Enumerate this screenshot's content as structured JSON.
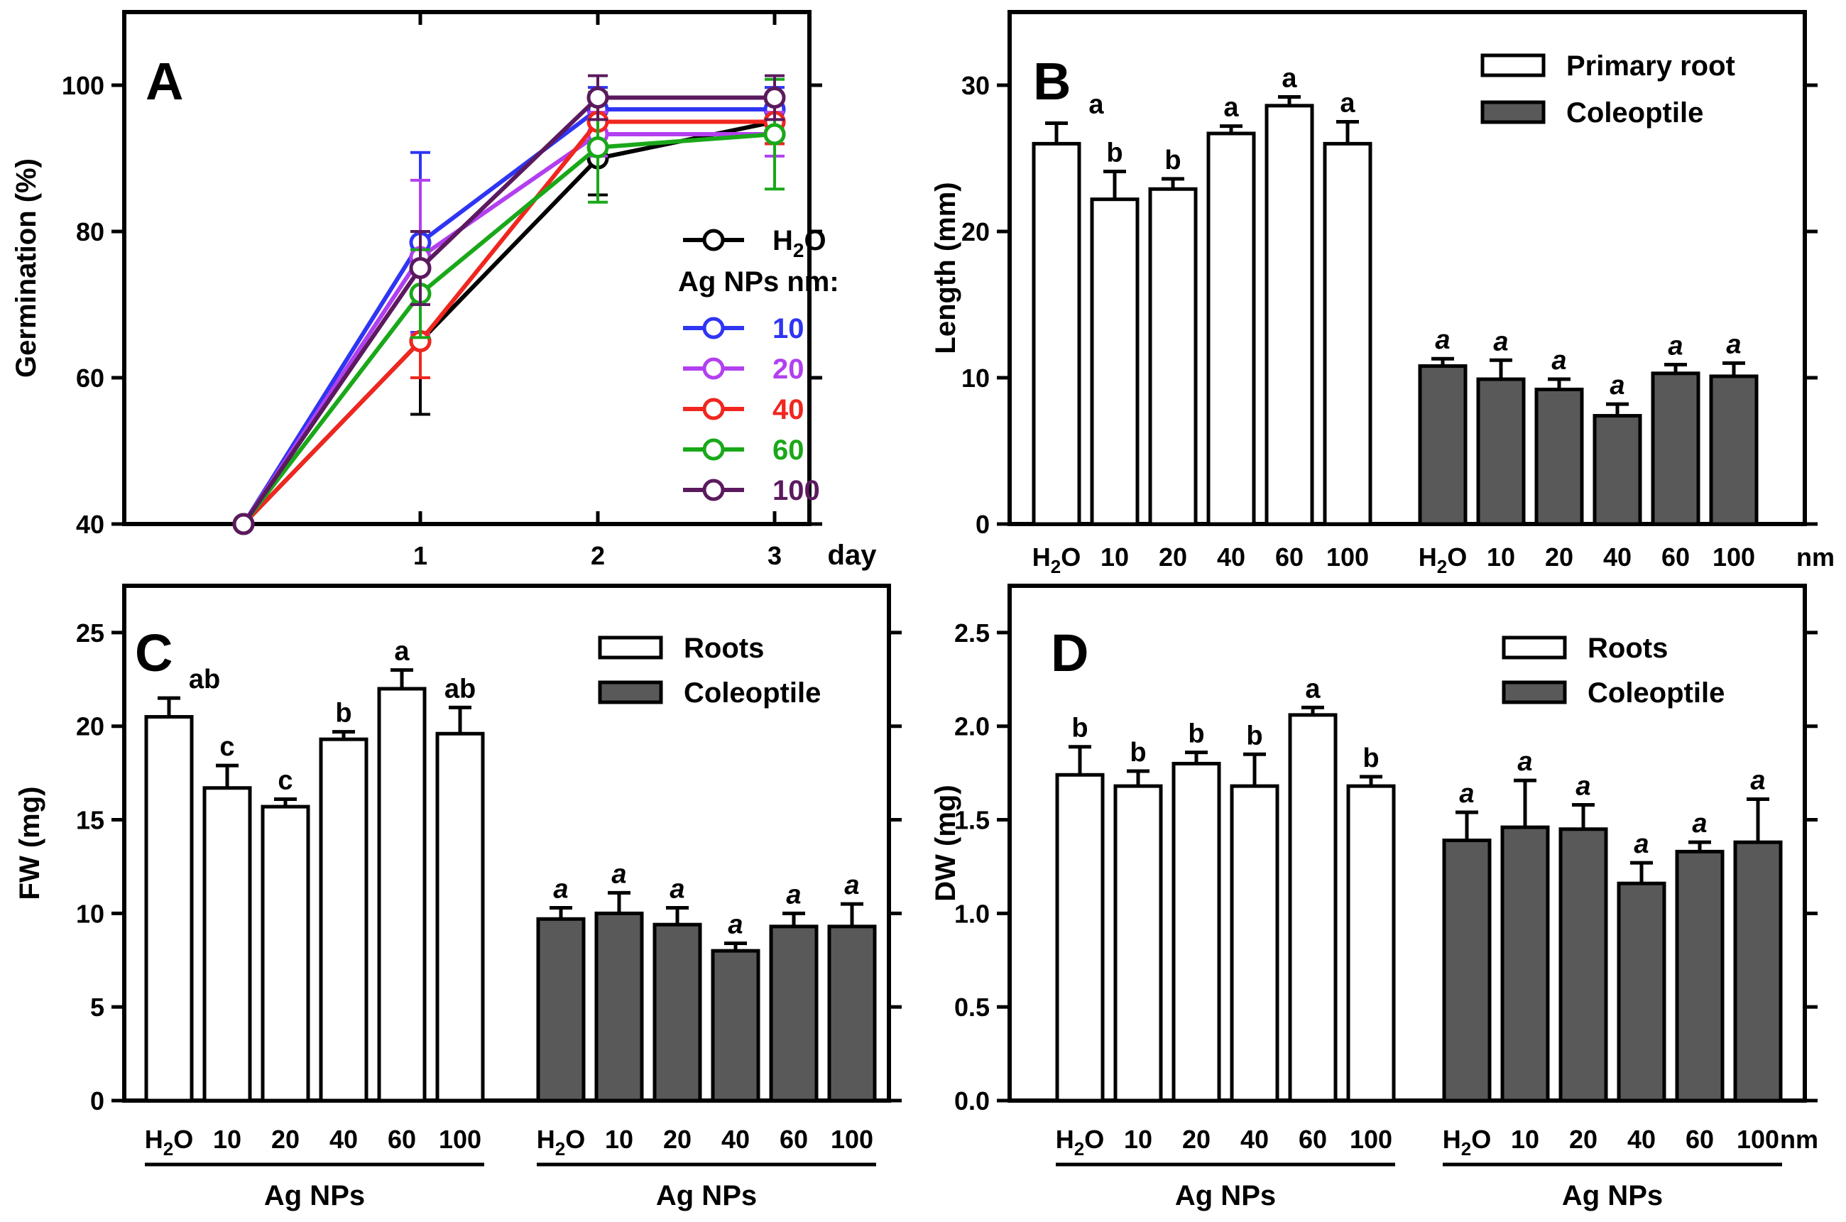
{
  "colors": {
    "white_bar": "#ffffff",
    "dark_bar": "#595959",
    "h2o": "#000000",
    "s10": "#2f35f3",
    "s20": "#b23ff0",
    "s40": "#f0261f",
    "s60": "#19a819",
    "s100": "#5b1a5e"
  },
  "chart_data": [
    {
      "type": "line",
      "panel": "A",
      "ylabel": "Germination (%)",
      "xlabel": "day",
      "x": [
        0,
        1,
        2,
        3
      ],
      "x_ticks": [
        "1",
        "2",
        "3"
      ],
      "y_ticks": [
        "40",
        "60",
        "80",
        "100"
      ],
      "ylim": [
        40,
        110
      ],
      "legend_title": "Ag NPs nm:",
      "series": [
        {
          "name": "H₂O",
          "legend_main": "H",
          "legend_sub": "2",
          "legend_tail": "O",
          "color_key": "h2o",
          "values": [
            40,
            65,
            90,
            95
          ],
          "errors": [
            0,
            10,
            5,
            3
          ]
        },
        {
          "name": "10",
          "color_key": "s10",
          "values": [
            40,
            78.5,
            96.7,
            96.7
          ],
          "errors": [
            0,
            12.3,
            3,
            3
          ]
        },
        {
          "name": "20",
          "color_key": "s20",
          "values": [
            40,
            76.5,
            93.3,
            93.3
          ],
          "errors": [
            0,
            10.5,
            3,
            3
          ]
        },
        {
          "name": "40",
          "color_key": "s40",
          "values": [
            40,
            65,
            95,
            95
          ],
          "errors": [
            0,
            5,
            3,
            3
          ]
        },
        {
          "name": "60",
          "color_key": "s60",
          "values": [
            40,
            71.5,
            91.5,
            93.3
          ],
          "errors": [
            0,
            6,
            7.5,
            7.5
          ]
        },
        {
          "name": "100",
          "color_key": "s100",
          "values": [
            40,
            75,
            98.3,
            98.3
          ],
          "errors": [
            0,
            5,
            3,
            3
          ]
        }
      ]
    },
    {
      "type": "bar",
      "panel": "B",
      "ylabel": "Length (mm)",
      "ylim": [
        0,
        35
      ],
      "y_ticks": [
        "0",
        "10",
        "20",
        "30"
      ],
      "categories": [
        "H₂O",
        "10",
        "20",
        "40",
        "60",
        "100"
      ],
      "unit_label": "nm",
      "group_labels": [
        "",
        ""
      ],
      "series": [
        {
          "name": "Primary root",
          "style": "white",
          "values": [
            26,
            22.2,
            22.9,
            26.7,
            28.6,
            26.0
          ],
          "errors": [
            1.4,
            1.9,
            0.7,
            0.5,
            0.6,
            1.5
          ],
          "letters": [
            "a",
            "b",
            "b",
            "a",
            "a",
            "a"
          ]
        },
        {
          "name": "Coleoptile",
          "style": "dark",
          "values": [
            10.8,
            9.9,
            9.2,
            7.4,
            10.3,
            10.1
          ],
          "errors": [
            0.5,
            1.3,
            0.7,
            0.8,
            0.6,
            0.9
          ],
          "letters": [
            "a",
            "a",
            "a",
            "a",
            "a",
            "a"
          ]
        }
      ]
    },
    {
      "type": "bar",
      "panel": "C",
      "ylabel": "FW (mg)",
      "ylim": [
        0,
        27.5
      ],
      "y_ticks": [
        "0",
        "5",
        "10",
        "15",
        "20",
        "25"
      ],
      "categories": [
        "H₂O",
        "10",
        "20",
        "40",
        "60",
        "100"
      ],
      "unit_label": "",
      "group_labels": [
        "Ag NPs",
        "Ag NPs"
      ],
      "series": [
        {
          "name": "Roots",
          "style": "white",
          "values": [
            20.5,
            16.7,
            15.7,
            19.3,
            22.0,
            19.6
          ],
          "errors": [
            1.0,
            1.2,
            0.4,
            0.4,
            1.0,
            1.4
          ],
          "letters": [
            "ab",
            "c",
            "c",
            "b",
            "a",
            "ab"
          ]
        },
        {
          "name": "Coleoptile",
          "style": "dark",
          "values": [
            9.7,
            10.0,
            9.4,
            8.0,
            9.3,
            9.3
          ],
          "errors": [
            0.6,
            1.1,
            0.9,
            0.4,
            0.7,
            1.2
          ],
          "letters": [
            "a",
            "a",
            "a",
            "a",
            "a",
            "a"
          ]
        }
      ]
    },
    {
      "type": "bar",
      "panel": "D",
      "ylabel": "DW (mg)",
      "ylim": [
        0,
        2.75
      ],
      "y_ticks": [
        "0.0",
        "0.5",
        "1.0",
        "1.5",
        "2.0",
        "2.5"
      ],
      "categories": [
        "H₂O",
        "10",
        "20",
        "40",
        "60",
        "100"
      ],
      "unit_label": "nm",
      "group_labels": [
        "Ag NPs",
        "Ag NPs"
      ],
      "series": [
        {
          "name": "Roots",
          "style": "white",
          "values": [
            1.74,
            1.68,
            1.8,
            1.68,
            2.06,
            1.68
          ],
          "errors": [
            0.15,
            0.08,
            0.06,
            0.17,
            0.04,
            0.05
          ],
          "letters": [
            "b",
            "b",
            "b",
            "b",
            "a",
            "b"
          ]
        },
        {
          "name": "Coleoptile",
          "style": "dark",
          "values": [
            1.39,
            1.46,
            1.45,
            1.16,
            1.33,
            1.38
          ],
          "errors": [
            0.15,
            0.25,
            0.13,
            0.11,
            0.05,
            0.23
          ],
          "letters": [
            "a",
            "a",
            "a",
            "a",
            "a",
            "a"
          ]
        }
      ]
    }
  ]
}
